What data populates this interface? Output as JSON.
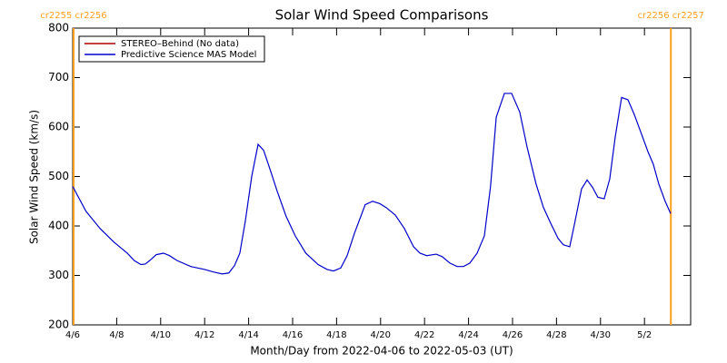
{
  "chart_data": {
    "type": "line",
    "title": "Solar Wind Speed Comparisons",
    "xlabel": "Month/Day from 2022-04-06 to 2022-05-03 (UT)",
    "ylabel": "Solar Wind Speed (km/s)",
    "xlim": [
      0,
      28.1
    ],
    "ylim": [
      200,
      800
    ],
    "yticks": [
      200,
      300,
      400,
      500,
      600,
      700,
      800
    ],
    "xticks": [
      {
        "value": 0,
        "label": "4/6"
      },
      {
        "value": 2,
        "label": "4/8"
      },
      {
        "value": 4,
        "label": "4/10"
      },
      {
        "value": 6,
        "label": "4/12"
      },
      {
        "value": 8,
        "label": "4/14"
      },
      {
        "value": 10,
        "label": "4/16"
      },
      {
        "value": 12,
        "label": "4/18"
      },
      {
        "value": 14,
        "label": "4/20"
      },
      {
        "value": 16,
        "label": "4/22"
      },
      {
        "value": 18,
        "label": "4/24"
      },
      {
        "value": 20,
        "label": "4/26"
      },
      {
        "value": 22,
        "label": "4/28"
      },
      {
        "value": 24,
        "label": "4/30"
      },
      {
        "value": 26,
        "label": "5/2"
      }
    ],
    "legend": "upper left",
    "annotations": [
      {
        "text": "cr2255 cr2256",
        "x": 0.04,
        "color": "#ff9f1c"
      },
      {
        "text": "cr2256 cr2257",
        "x": 27.2,
        "color": "#ff9f1c"
      }
    ],
    "x": [
      0,
      0.6,
      1.24,
      1.86,
      2.48,
      2.8,
      3.1,
      3.3,
      3.5,
      3.8,
      4.13,
      4.4,
      4.75,
      5.37,
      6.0,
      6.4,
      6.8,
      7.1,
      7.36,
      7.6,
      7.85,
      8.14,
      8.43,
      8.68,
      8.97,
      9.3,
      9.7,
      10.12,
      10.6,
      11.16,
      11.57,
      11.86,
      12.19,
      12.48,
      12.81,
      13.3,
      13.64,
      13.97,
      14.26,
      14.67,
      15.08,
      15.5,
      15.79,
      16.1,
      16.53,
      16.8,
      17.15,
      17.48,
      17.77,
      18.06,
      18.39,
      18.72,
      19.0,
      19.26,
      19.63,
      19.96,
      20.33,
      20.66,
      21.07,
      21.4,
      21.74,
      22.07,
      22.31,
      22.6,
      22.8,
      23.14,
      23.39,
      23.64,
      23.88,
      24.17,
      24.42,
      24.67,
      24.96,
      25.25,
      25.54,
      25.83,
      26.16,
      26.4,
      26.65,
      26.94,
      27.19
    ],
    "series": [
      {
        "name": "STEREO–Behind (No data)",
        "color": "#b00000",
        "values": [
          null,
          null,
          null,
          null,
          null,
          null,
          null,
          null,
          null,
          null,
          null,
          null,
          null,
          null,
          null,
          null,
          null,
          null,
          null,
          null,
          null,
          null,
          null,
          null,
          null,
          null,
          null,
          null,
          null,
          null,
          null,
          null,
          null,
          null,
          null,
          null,
          null,
          null,
          null,
          null,
          null,
          null,
          null,
          null,
          null,
          null,
          null,
          null,
          null,
          null,
          null,
          null,
          null,
          null,
          null,
          null,
          null,
          null,
          null,
          null,
          null,
          null,
          null,
          null,
          null,
          null,
          null,
          null,
          null,
          null,
          null,
          null,
          null,
          null,
          null,
          null,
          null,
          null,
          null,
          null,
          null
        ]
      },
      {
        "name": "Predictive Science MAS Model",
        "color": "#0000c8",
        "values": [
          480,
          430,
          395,
          368,
          345,
          330,
          322,
          323,
          330,
          342,
          345,
          340,
          330,
          318,
          312,
          307,
          303,
          305,
          320,
          345,
          410,
          500,
          565,
          553,
          515,
          470,
          420,
          380,
          345,
          322,
          312,
          309,
          315,
          340,
          385,
          443,
          450,
          445,
          437,
          422,
          395,
          358,
          345,
          340,
          343,
          338,
          325,
          318,
          318,
          325,
          345,
          380,
          480,
          620,
          668,
          668,
          630,
          560,
          485,
          438,
          405,
          375,
          362,
          358,
          400,
          475,
          493,
          478,
          458,
          455,
          495,
          580,
          660,
          655,
          625,
          590,
          550,
          525,
          485,
          450,
          425
        ]
      }
    ]
  }
}
